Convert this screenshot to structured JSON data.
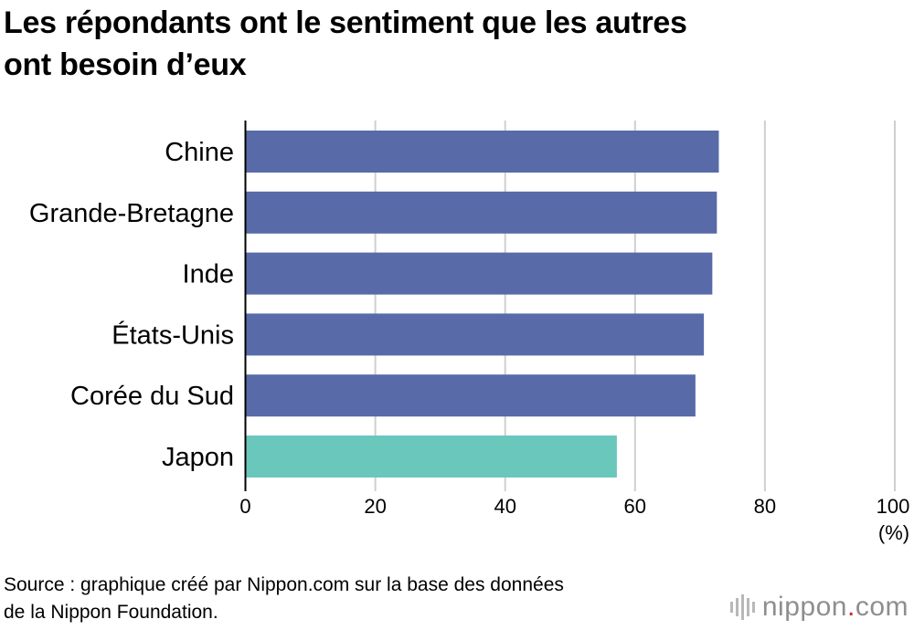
{
  "title": {
    "line1": "Les répondants ont le sentiment que les autres",
    "line2": "ont besoin d’eux"
  },
  "chart_data": {
    "type": "bar",
    "orientation": "horizontal",
    "categories": [
      "Chine",
      "Grande-Bretagne",
      "Inde",
      "États-Unis",
      "Corée du Sud",
      "Japon"
    ],
    "values": [
      72.9,
      72.6,
      71.9,
      70.6,
      69.3,
      57.2
    ],
    "colors": [
      "#586aa8",
      "#586aa8",
      "#586aa8",
      "#586aa8",
      "#586aa8",
      "#6ac7bb"
    ],
    "xticks": [
      "0",
      "20",
      "40",
      "60",
      "80",
      "100"
    ],
    "xlim": [
      0,
      100
    ],
    "unit": "(%)",
    "grid": true
  },
  "source": {
    "line1": "Source : graphique créé par Nippon.com sur la base des données",
    "line2": "de la Nippon Foundation."
  },
  "logo": {
    "main": "nippon",
    "dot": ".",
    "suffix": "com",
    "bars_color": "#b8b8b8",
    "text_color": "#8e8e8e",
    "dot_color": "#d2232a"
  }
}
